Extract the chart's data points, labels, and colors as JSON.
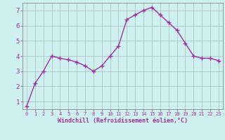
{
  "x": [
    0,
    1,
    2,
    3,
    4,
    5,
    6,
    7,
    8,
    9,
    10,
    11,
    12,
    13,
    14,
    15,
    16,
    17,
    18,
    19,
    20,
    21,
    22,
    23
  ],
  "y": [
    0.7,
    2.2,
    3.0,
    4.0,
    3.85,
    3.75,
    3.6,
    3.35,
    3.0,
    3.35,
    4.0,
    4.65,
    6.4,
    6.7,
    7.0,
    7.2,
    6.7,
    6.2,
    5.7,
    4.85,
    4.0,
    3.85,
    3.85,
    3.7
  ],
  "line_color": "#993399",
  "marker": "+",
  "marker_size": 4,
  "bg_color": "#cff0f0",
  "grid_color": "#aabbbb",
  "xlabel": "Windchill (Refroidissement éolien,°C)",
  "xlabel_color": "#993399",
  "ylabel_color": "#993399",
  "tick_color": "#993399",
  "ylim": [
    0.5,
    7.5
  ],
  "xlim": [
    -0.5,
    23.5
  ],
  "yticks": [
    1,
    2,
    3,
    4,
    5,
    6,
    7
  ],
  "xticks": [
    0,
    1,
    2,
    3,
    4,
    5,
    6,
    7,
    8,
    9,
    10,
    11,
    12,
    13,
    14,
    15,
    16,
    17,
    18,
    19,
    20,
    21,
    22,
    23
  ],
  "figure_bg": "#cff0f0",
  "spine_color": "#888888"
}
